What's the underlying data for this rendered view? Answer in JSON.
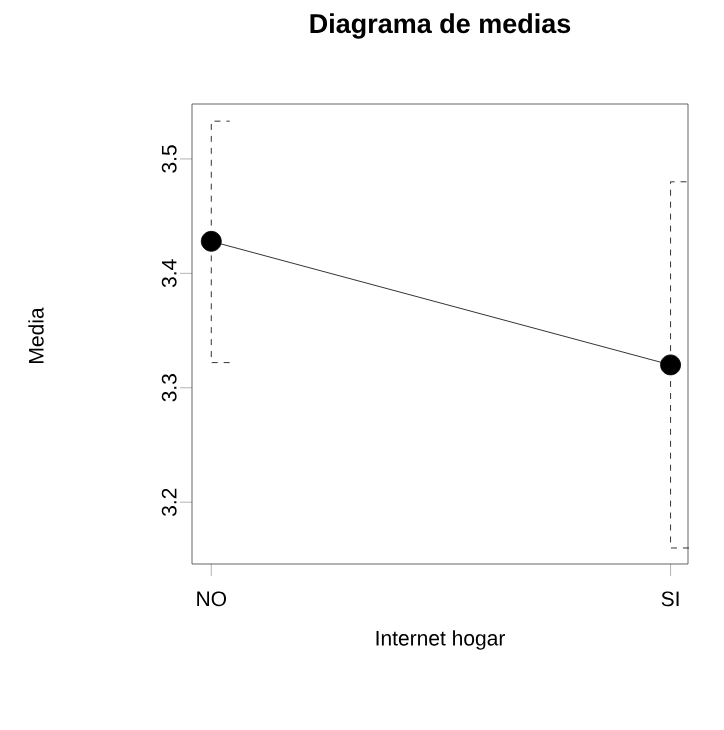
{
  "chart_data": {
    "type": "line",
    "title": "Diagrama de medias",
    "xlabel": "Internet hogar",
    "ylabel": "Media",
    "categories": [
      "NO",
      "SI"
    ],
    "values": [
      3.428,
      3.32
    ],
    "errors": [
      [
        3.322,
        3.533
      ],
      [
        3.16,
        3.48
      ]
    ],
    "color": "#000000",
    "marker": "circle",
    "line_style": "solid",
    "ylim": [
      3.146,
      3.548
    ],
    "yticks": [
      3.2,
      3.3,
      3.4,
      3.5
    ],
    "grid": false
  }
}
